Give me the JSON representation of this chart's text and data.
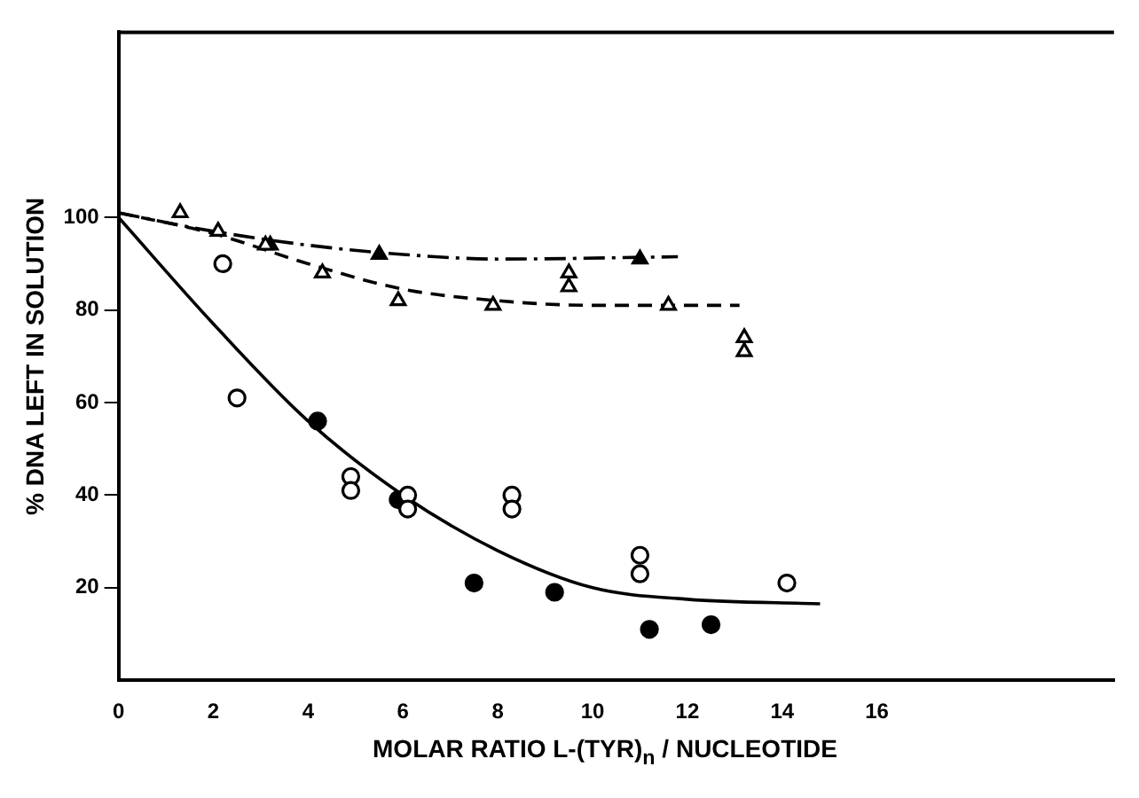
{
  "chart_data": {
    "type": "scatter",
    "xlabel": "MOLAR RATIO L-(TYR)$_{n}$ / NUCLEOTIDE",
    "ylabel": "% DNA LEFT IN SOLUTION",
    "xlim": [
      0,
      21
    ],
    "xticks": [
      0,
      2,
      4,
      6,
      8,
      10,
      12,
      14,
      16
    ],
    "ylim": [
      0,
      140
    ],
    "yticks": [
      20,
      40,
      60,
      80,
      100
    ],
    "grid": false,
    "legend": false,
    "series": [
      {
        "color": "#ffffff",
        "marker": "circle",
        "x": [
          2.2,
          2.5,
          4.9,
          4.9,
          6.1,
          6.1,
          8.3,
          8.3,
          11.0,
          11.0,
          14.1
        ],
        "values": [
          90,
          61,
          44,
          41,
          40,
          37,
          40,
          37,
          27,
          23,
          21
        ]
      },
      {
        "color": "#000000",
        "marker": "circle",
        "x": [
          4.2,
          5.9,
          7.5,
          9.2,
          11.2,
          12.5
        ],
        "values": [
          56,
          39,
          21,
          19,
          11,
          12
        ]
      },
      {
        "color": "#ffffff",
        "marker": "triangle",
        "x": [
          1.3,
          2.1,
          3.1,
          4.3,
          5.9,
          7.9,
          9.5,
          9.5,
          11.6,
          13.2,
          13.2
        ],
        "values": [
          101,
          97,
          94,
          88,
          82,
          81,
          88,
          85,
          81,
          74,
          71
        ]
      },
      {
        "color": "#000000",
        "marker": "triangle",
        "x": [
          3.2,
          5.5,
          11.0
        ],
        "values": [
          94,
          92,
          91
        ]
      },
      {
        "type": "line",
        "color": "#000000",
        "line_style": "solid",
        "x": [
          0,
          2,
          4,
          6,
          8,
          10,
          12,
          14.8
        ],
        "values": [
          100,
          77,
          56,
          40,
          28,
          20,
          17.5,
          16.5
        ]
      },
      {
        "type": "line",
        "color": "#000000",
        "line_style": "dashed",
        "x": [
          0,
          2,
          4,
          6,
          8,
          10,
          13.1
        ],
        "values": [
          101,
          96.5,
          90,
          84.5,
          82,
          81,
          81
        ]
      },
      {
        "type": "line",
        "color": "#000000",
        "line_style": "dotted",
        "x": [
          0,
          2,
          4,
          6,
          8,
          11.8
        ],
        "values": [
          101,
          97,
          94,
          92,
          91,
          91.5
        ]
      }
    ]
  }
}
